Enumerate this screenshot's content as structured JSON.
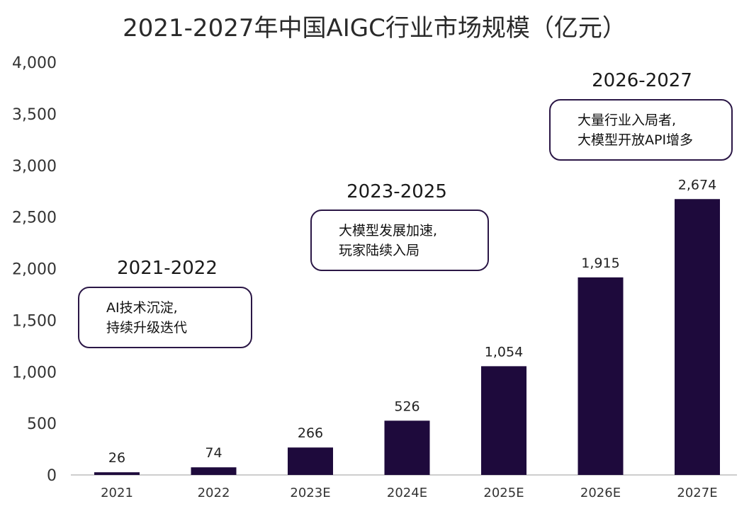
{
  "chart_data": {
    "type": "bar",
    "title": "2021-2027年中国AIGC行业市场规模（亿元）",
    "categories": [
      "2021",
      "2022",
      "2023E",
      "2024E",
      "2025E",
      "2026E",
      "2027E"
    ],
    "values": [
      26,
      74,
      266,
      526,
      1054,
      1915,
      2674
    ],
    "value_labels": [
      "26",
      "74",
      "266",
      "526",
      "1,054",
      "1,915",
      "2,674"
    ],
    "ylim": [
      0,
      4000
    ],
    "yticks": [
      0,
      500,
      1000,
      1500,
      2000,
      2500,
      3000,
      3500,
      4000
    ],
    "ytick_labels": [
      "0",
      "500",
      "1,000",
      "1,500",
      "2,000",
      "2,500",
      "3,000",
      "3,500",
      "4,000"
    ],
    "grid": false,
    "bar_color": "#1e0a3c",
    "annotations": [
      {
        "period": "2021-2022",
        "lines": [
          "AI技术沉淀,",
          "持续升级迭代"
        ]
      },
      {
        "period": "2023-2025",
        "lines": [
          "大模型发展加速,",
          "玩家陆续入局"
        ]
      },
      {
        "period": "2026-2027",
        "lines": [
          "大量行业入局者,",
          "大模型开放API增多"
        ]
      }
    ]
  }
}
